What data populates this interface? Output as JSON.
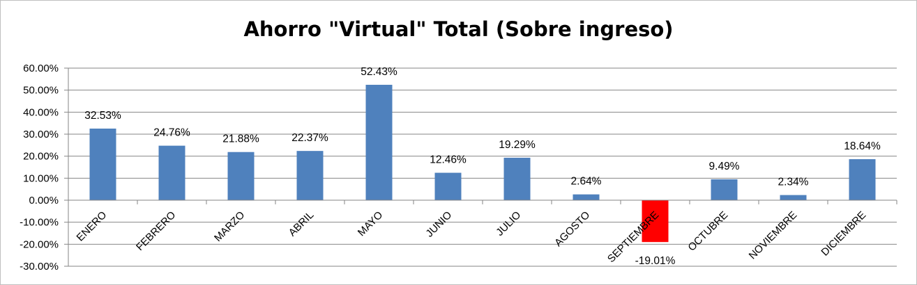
{
  "chart_data": {
    "type": "bar",
    "title": "Ahorro \"Virtual\" Total (Sobre ingreso)",
    "xlabel": "",
    "ylabel": "",
    "ylim": [
      -0.3,
      0.6
    ],
    "ytick_step": 0.1,
    "y_ticks": [
      "60.00%",
      "50.00%",
      "40.00%",
      "30.00%",
      "20.00%",
      "10.00%",
      "0.00%",
      "-10.00%",
      "-20.00%",
      "-30.00%"
    ],
    "grid": true,
    "legend": "none",
    "categories": [
      "ENERO",
      "FEBRERO",
      "MARZO",
      "ABRIL",
      "MAYO",
      "JUNIO",
      "JULIO",
      "AGOSTO",
      "SEPTIEMBRE",
      "OCTUBRE",
      "NOVIEMBRE",
      "DICIEMBRE"
    ],
    "values": [
      0.3253,
      0.2476,
      0.2188,
      0.2237,
      0.5243,
      0.1246,
      0.1929,
      0.0264,
      -0.1901,
      0.0949,
      0.0234,
      0.1864
    ],
    "data_labels": [
      "32.53%",
      "24.76%",
      "21.88%",
      "22.37%",
      "52.43%",
      "12.46%",
      "19.29%",
      "2.64%",
      "-19.01%",
      "9.49%",
      "2.34%",
      "18.64%"
    ],
    "colors": {
      "positive": "#4f81bd",
      "negative": "#ff0000",
      "grid": "#868686",
      "axis": "#868686"
    }
  }
}
